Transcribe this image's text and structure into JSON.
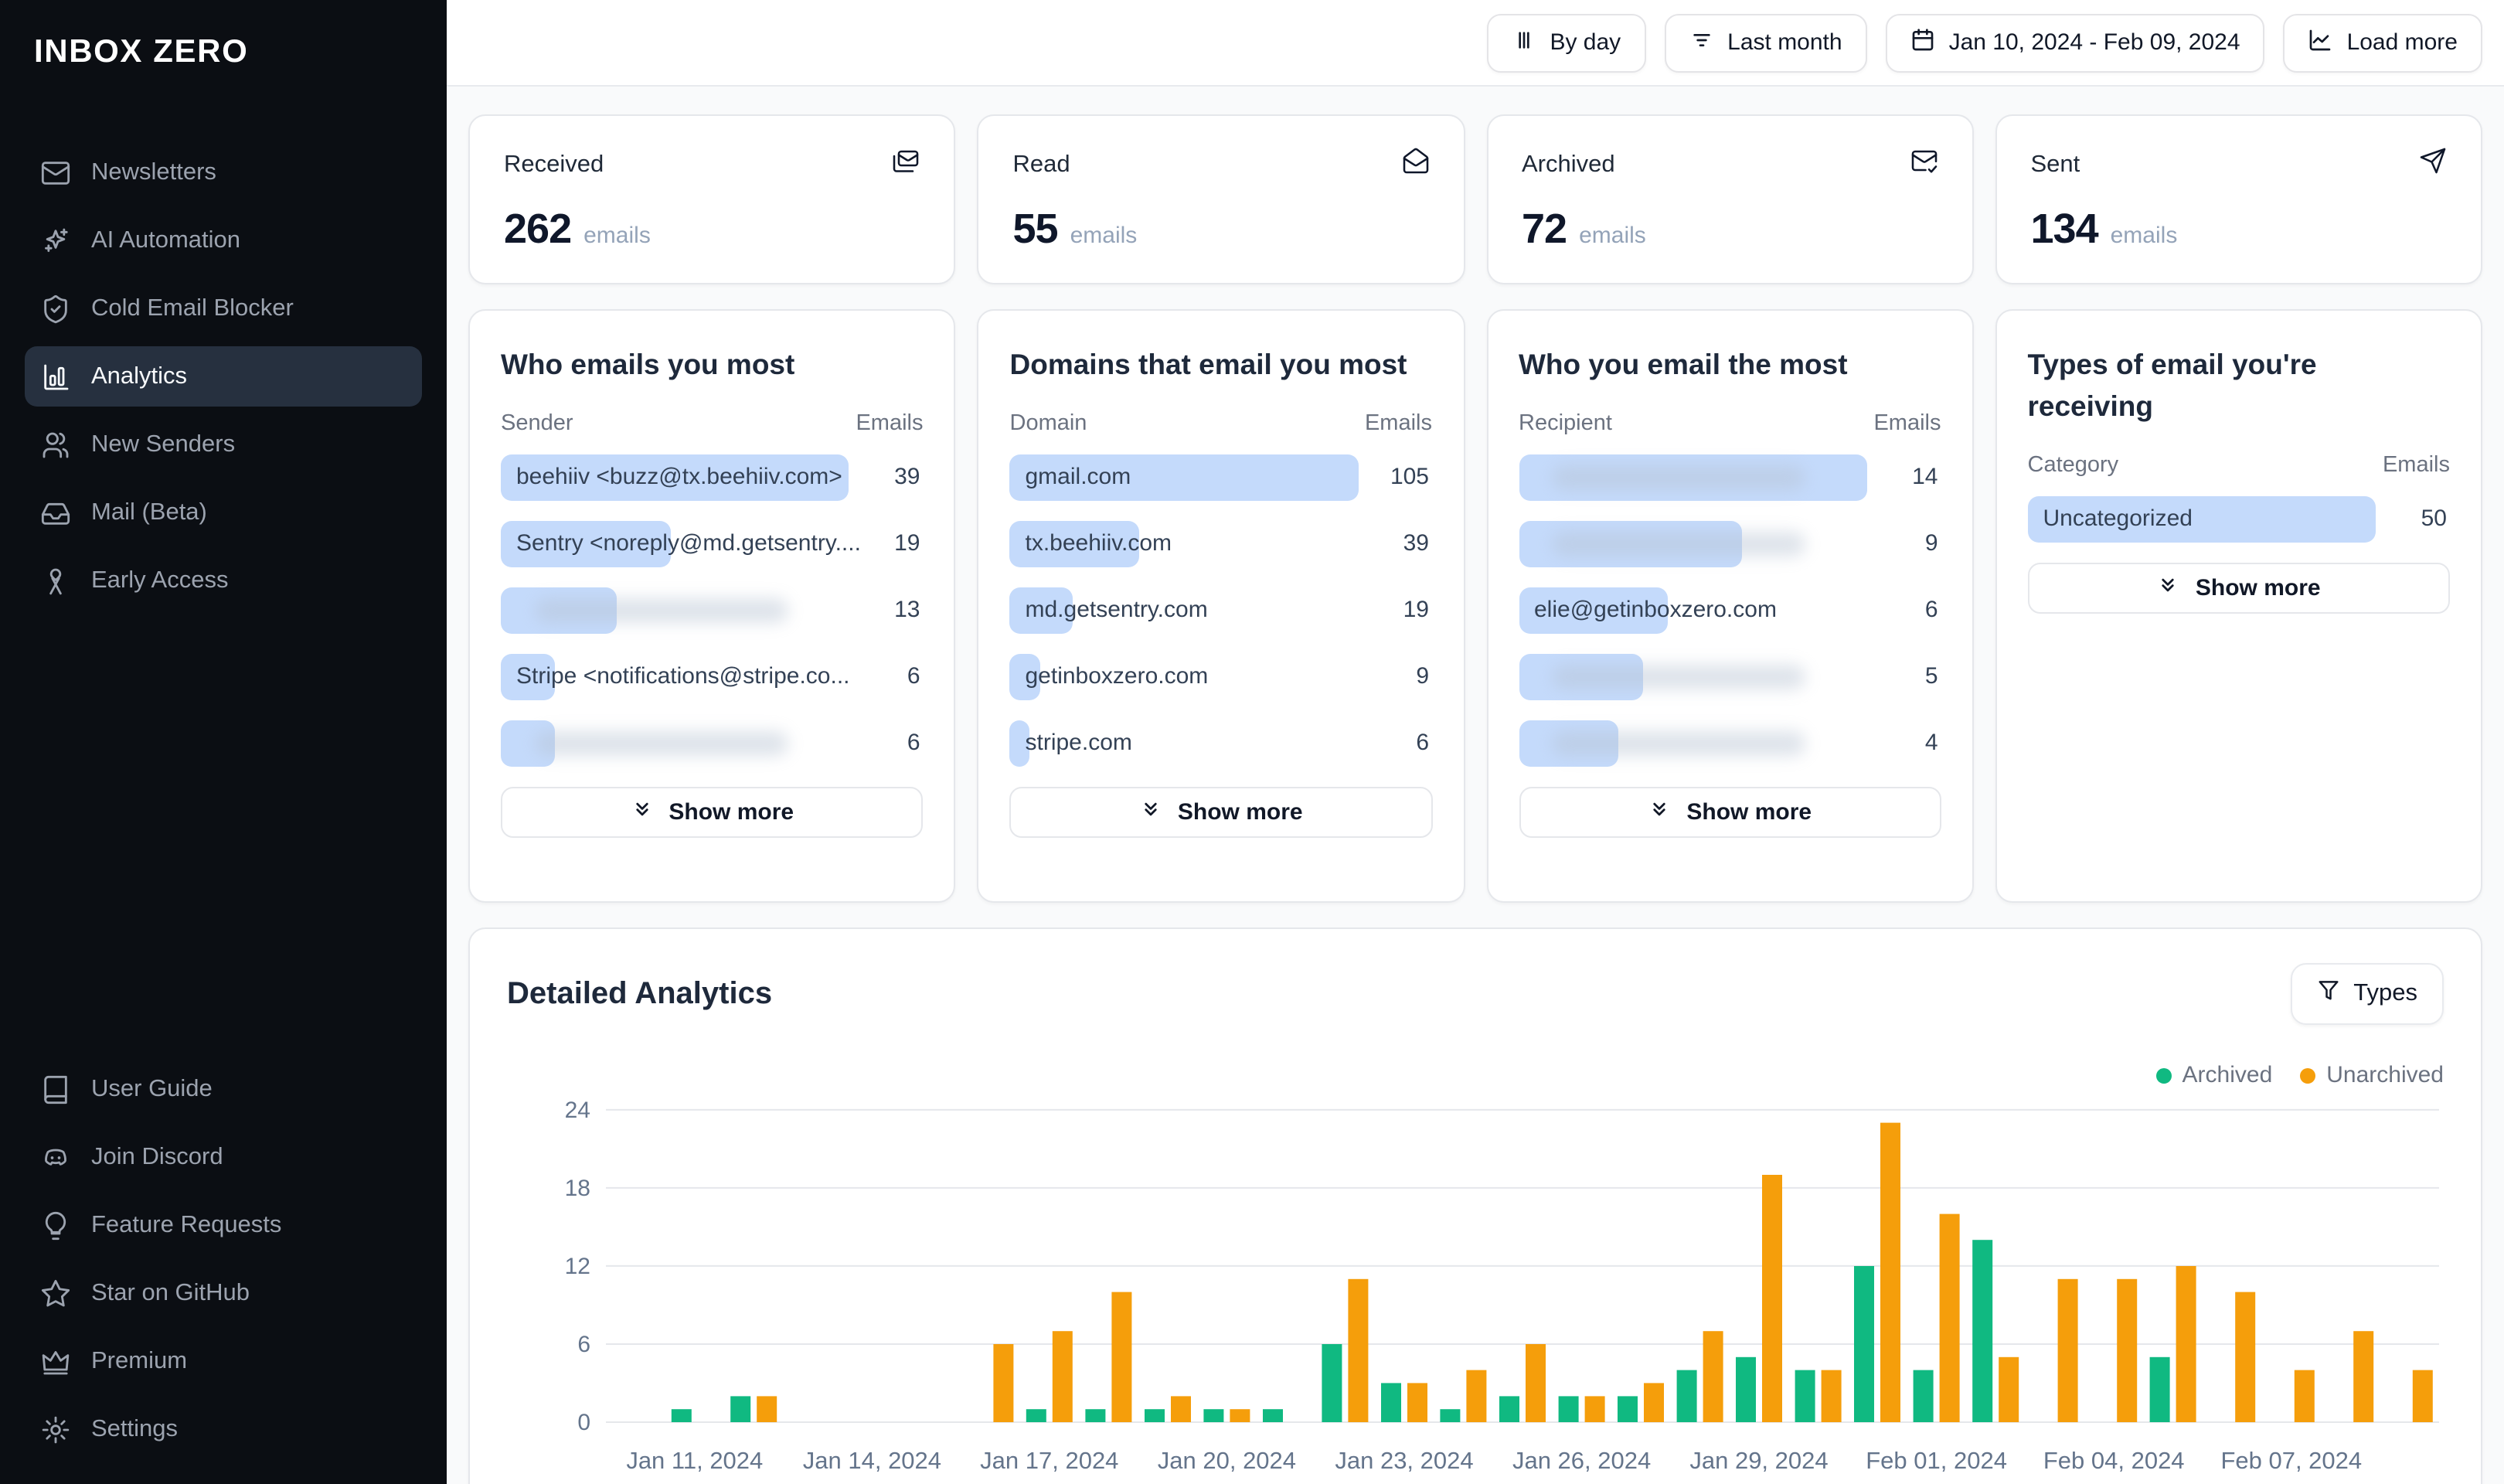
{
  "sidebar": {
    "logo": "INBOX ZERO",
    "nav": [
      {
        "label": "Newsletters",
        "icon": "mail-icon",
        "active": false
      },
      {
        "label": "AI Automation",
        "icon": "sparkles-icon",
        "active": false
      },
      {
        "label": "Cold Email Blocker",
        "icon": "shield-check-icon",
        "active": false
      },
      {
        "label": "Analytics",
        "icon": "bar-chart-icon",
        "active": true
      },
      {
        "label": "New Senders",
        "icon": "users-icon",
        "active": false
      },
      {
        "label": "Mail (Beta)",
        "icon": "inbox-icon",
        "active": false
      },
      {
        "label": "Early Access",
        "icon": "ribbon-icon",
        "active": false
      }
    ],
    "bottom_nav": [
      {
        "label": "User Guide",
        "icon": "book-icon"
      },
      {
        "label": "Join Discord",
        "icon": "discord-icon"
      },
      {
        "label": "Feature Requests",
        "icon": "lightbulb-icon"
      },
      {
        "label": "Star on GitHub",
        "icon": "star-icon"
      },
      {
        "label": "Premium",
        "icon": "crown-icon"
      },
      {
        "label": "Settings",
        "icon": "gear-icon"
      }
    ]
  },
  "topbar": {
    "buttons": [
      {
        "label": "By day",
        "icon": "columns-icon"
      },
      {
        "label": "Last month",
        "icon": "filter-lines-icon"
      },
      {
        "label": "Jan 10, 2024 - Feb 09, 2024",
        "icon": "calendar-icon"
      },
      {
        "label": "Load more",
        "icon": "chart-line-icon"
      }
    ]
  },
  "stats": [
    {
      "label": "Received",
      "value": "262",
      "unit": "emails",
      "icon": "mails-icon"
    },
    {
      "label": "Read",
      "value": "55",
      "unit": "emails",
      "icon": "mail-open-icon"
    },
    {
      "label": "Archived",
      "value": "72",
      "unit": "emails",
      "icon": "mail-check-icon"
    },
    {
      "label": "Sent",
      "value": "134",
      "unit": "emails",
      "icon": "send-icon"
    }
  ],
  "tables": [
    {
      "title": "Who emails you most",
      "col1": "Sender",
      "col2": "Emails",
      "show_more": "Show more",
      "rows": [
        {
          "label": "beehiiv <buzz@tx.beehiiv.com>",
          "value": 39,
          "bar": 1.0,
          "redacted": false
        },
        {
          "label": "Sentry <noreply@md.getsentry....",
          "value": 19,
          "bar": 0.487,
          "redacted": false
        },
        {
          "label": "",
          "value": 13,
          "bar": 0.333,
          "redacted": true
        },
        {
          "label": "Stripe <notifications@stripe.co...",
          "value": 6,
          "bar": 0.154,
          "redacted": false
        },
        {
          "label": "",
          "value": 6,
          "bar": 0.154,
          "redacted": true
        }
      ]
    },
    {
      "title": "Domains that email you most",
      "col1": "Domain",
      "col2": "Emails",
      "show_more": "Show more",
      "rows": [
        {
          "label": "gmail.com",
          "value": 105,
          "bar": 1.0,
          "redacted": false
        },
        {
          "label": "tx.beehiiv.com",
          "value": 39,
          "bar": 0.371,
          "redacted": false
        },
        {
          "label": "md.getsentry.com",
          "value": 19,
          "bar": 0.181,
          "redacted": false
        },
        {
          "label": "getinboxzero.com",
          "value": 9,
          "bar": 0.086,
          "redacted": false
        },
        {
          "label": "stripe.com",
          "value": 6,
          "bar": 0.057,
          "redacted": false
        }
      ]
    },
    {
      "title": "Who you email the most",
      "col1": "Recipient",
      "col2": "Emails",
      "show_more": "Show more",
      "rows": [
        {
          "label": "",
          "value": 14,
          "bar": 1.0,
          "redacted": true
        },
        {
          "label": "",
          "value": 9,
          "bar": 0.643,
          "redacted": true
        },
        {
          "label": "elie@getinboxzero.com",
          "value": 6,
          "bar": 0.429,
          "redacted": false
        },
        {
          "label": "",
          "value": 5,
          "bar": 0.357,
          "redacted": true
        },
        {
          "label": "",
          "value": 4,
          "bar": 0.286,
          "redacted": true
        }
      ]
    },
    {
      "title": "Types of email you're receiving",
      "col1": "Category",
      "col2": "Emails",
      "show_more": "Show more",
      "rows": [
        {
          "label": "Uncategorized",
          "value": 50,
          "bar": 1.0,
          "redacted": false
        }
      ]
    }
  ],
  "detailed": {
    "title": "Detailed Analytics",
    "types_button": {
      "label": "Types",
      "icon": "funnel-icon"
    },
    "legend": [
      {
        "label": "Archived",
        "color": "#10b981"
      },
      {
        "label": "Unarchived",
        "color": "#f59e0b"
      }
    ],
    "chart_data": {
      "type": "bar",
      "title": "Detailed Analytics",
      "xlabel": "",
      "ylabel": "",
      "ylim": [
        0,
        24
      ],
      "yticks": [
        0,
        6,
        12,
        18,
        24
      ],
      "grid": true,
      "legend_position": "top-right",
      "categories": [
        "Jan 10, 2024",
        "Jan 11, 2024",
        "Jan 12, 2024",
        "Jan 13, 2024",
        "Jan 14, 2024",
        "Jan 15, 2024",
        "Jan 16, 2024",
        "Jan 17, 2024",
        "Jan 18, 2024",
        "Jan 19, 2024",
        "Jan 20, 2024",
        "Jan 21, 2024",
        "Jan 22, 2024",
        "Jan 23, 2024",
        "Jan 24, 2024",
        "Jan 25, 2024",
        "Jan 26, 2024",
        "Jan 27, 2024",
        "Jan 28, 2024",
        "Jan 29, 2024",
        "Jan 30, 2024",
        "Jan 31, 2024",
        "Feb 01, 2024",
        "Feb 02, 2024",
        "Feb 03, 2024",
        "Feb 04, 2024",
        "Feb 05, 2024",
        "Feb 06, 2024",
        "Feb 07, 2024",
        "Feb 08, 2024",
        "Feb 09, 2024"
      ],
      "xtick_labels": [
        "Jan 11, 2024",
        "Jan 14, 2024",
        "Jan 17, 2024",
        "Jan 20, 2024",
        "Jan 23, 2024",
        "Jan 26, 2024",
        "Jan 29, 2024",
        "Feb 01, 2024",
        "Feb 04, 2024",
        "Feb 07, 2024"
      ],
      "series": [
        {
          "name": "Archived",
          "color": "#10b981",
          "values": [
            0,
            1,
            2,
            0,
            0,
            0,
            0,
            1,
            1,
            1,
            1,
            1,
            6,
            3,
            1,
            2,
            2,
            2,
            4,
            5,
            4,
            12,
            4,
            14,
            0,
            0,
            5,
            0,
            0,
            0,
            0
          ]
        },
        {
          "name": "Unarchived",
          "color": "#f59e0b",
          "values": [
            0,
            0,
            2,
            0,
            0,
            0,
            6,
            7,
            10,
            2,
            1,
            0,
            11,
            3,
            4,
            6,
            2,
            3,
            7,
            19,
            4,
            23,
            16,
            5,
            11,
            11,
            12,
            10,
            4,
            7,
            4
          ]
        }
      ]
    }
  }
}
